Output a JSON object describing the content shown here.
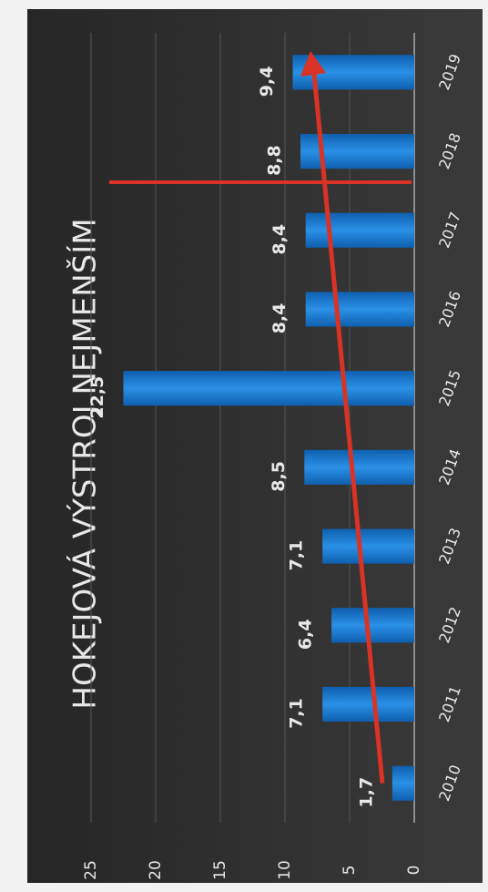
{
  "chart_data": {
    "type": "bar",
    "title": "HOKEJOVÁ VÝSTROJ  NEJMENŠÍM",
    "categories": [
      "2010",
      "2011",
      "2012",
      "2013",
      "2014",
      "2015",
      "2016",
      "2017",
      "2018",
      "2019"
    ],
    "values": [
      1.7,
      7.1,
      6.4,
      7.1,
      8.5,
      22.5,
      8.4,
      8.4,
      8.8,
      9.4
    ],
    "value_labels": [
      "1,7",
      "7,1",
      "6,4",
      "7,1",
      "8,5",
      "22,5",
      "8,4",
      "8,4",
      "8,8",
      "9,4"
    ],
    "color": "#1e7fd6",
    "ylim": [
      0,
      25
    ],
    "yticks": [
      0,
      5,
      10,
      15,
      20,
      25
    ],
    "grid": true
  }
}
